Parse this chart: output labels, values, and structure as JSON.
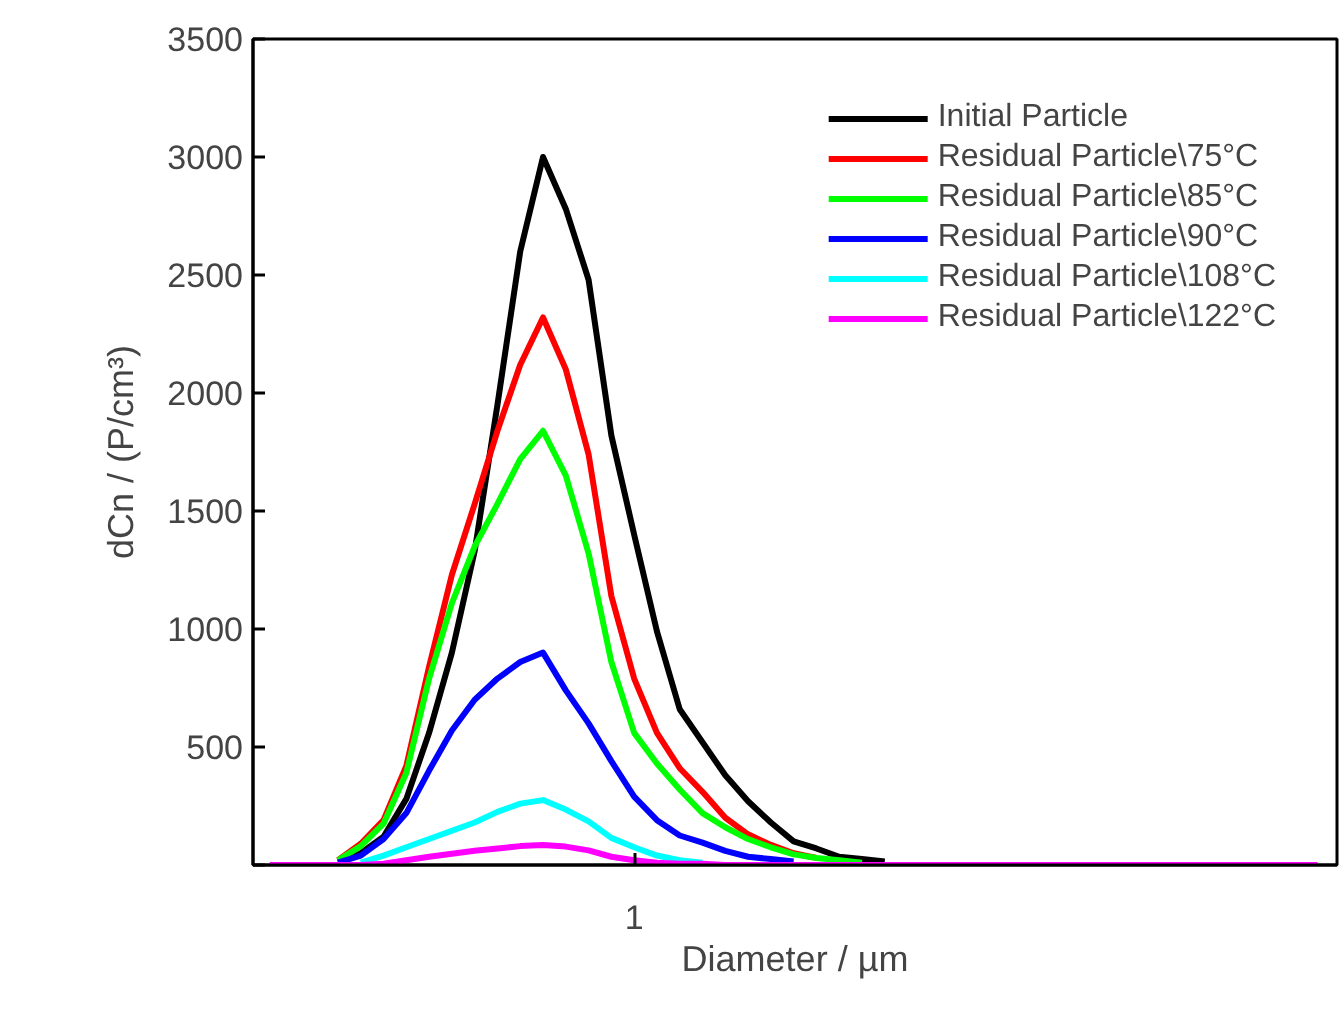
{
  "chart_data": {
    "type": "line",
    "xlabel": "Diameter / µm",
    "ylabel": "dCn / (P/cm³)",
    "categories": [
      null,
      null,
      null,
      null,
      null,
      null,
      null,
      null,
      null,
      null,
      null,
      null,
      null,
      null,
      null,
      null,
      "1",
      null,
      null,
      null,
      null,
      null,
      null,
      null,
      null,
      null,
      null,
      null,
      null,
      null,
      null,
      null,
      null,
      null,
      null,
      null,
      null,
      null,
      null,
      null,
      null,
      null,
      null,
      null,
      null,
      null,
      null
    ],
    "ylim": [
      0,
      3500
    ],
    "yticks": [
      {
        "value": 0,
        "label": null
      },
      500,
      1000,
      1500,
      2000,
      2500,
      3000,
      3500
    ],
    "grid": false,
    "legend": "top right",
    "marker": "none",
    "line_style": "solid",
    "series": [
      {
        "name": "Initial Particle",
        "color": "#000000",
        "values": [
          null,
          null,
          null,
          15,
          50,
          120,
          280,
          560,
          900,
          1330,
          1950,
          2600,
          3000,
          2780,
          2480,
          1820,
          1400,
          990,
          660,
          520,
          380,
          270,
          180,
          100,
          70,
          35,
          25,
          15,
          null,
          null,
          null,
          null,
          null,
          null,
          null,
          null,
          null,
          null,
          null,
          null,
          null,
          null,
          null,
          null,
          null,
          null,
          null
        ]
      },
      {
        "name": "Residual Particle\\75°C",
        "color": "#ff0000",
        "values": [
          null,
          null,
          null,
          20,
          90,
          190,
          420,
          840,
          1230,
          1530,
          1840,
          2120,
          2320,
          2100,
          1740,
          1140,
          790,
          560,
          410,
          310,
          200,
          130,
          85,
          50,
          30,
          null,
          null,
          null,
          null,
          null,
          null,
          null,
          null,
          null,
          null,
          null,
          null,
          null,
          null,
          null,
          null,
          null,
          null,
          null,
          null,
          null,
          null
        ]
      },
      {
        "name": "Residual Particle\\85°C",
        "color": "#00ff00",
        "values": [
          null,
          null,
          null,
          20,
          80,
          175,
          390,
          790,
          1110,
          1350,
          1530,
          1720,
          1840,
          1650,
          1320,
          860,
          560,
          430,
          320,
          220,
          160,
          110,
          75,
          45,
          30,
          20,
          10,
          null,
          null,
          null,
          null,
          null,
          null,
          null,
          null,
          null,
          null,
          null,
          null,
          null,
          null,
          null,
          null,
          null,
          null,
          null,
          null
        ]
      },
      {
        "name": "Residual Particle\\90°C",
        "color": "#0000ff",
        "values": [
          null,
          null,
          null,
          10,
          40,
          110,
          220,
          400,
          570,
          700,
          790,
          860,
          900,
          740,
          600,
          440,
          290,
          190,
          125,
          95,
          60,
          35,
          25,
          15,
          null,
          null,
          null,
          null,
          null,
          null,
          null,
          null,
          null,
          null,
          null,
          null,
          null,
          null,
          null,
          null,
          null,
          null,
          null,
          null,
          null,
          null,
          null
        ]
      },
      {
        "name": "Residual Particle\\108°C",
        "color": "#00ffff",
        "values": [
          null,
          null,
          null,
          null,
          10,
          40,
          75,
          110,
          145,
          180,
          225,
          260,
          275,
          235,
          185,
          115,
          75,
          40,
          20,
          10,
          null,
          null,
          null,
          null,
          null,
          null,
          null,
          null,
          null,
          null,
          null,
          null,
          null,
          null,
          null,
          null,
          null,
          null,
          null,
          null,
          null,
          null,
          null,
          null,
          null,
          null,
          null
        ]
      },
      {
        "name": "Residual Particle\\122°C",
        "color": "#ff00ff",
        "values": [
          0,
          0,
          0,
          0,
          0,
          5,
          20,
          35,
          48,
          60,
          70,
          80,
          85,
          78,
          62,
          35,
          20,
          10,
          5,
          5,
          0,
          0,
          0,
          0,
          0,
          0,
          0,
          0,
          0,
          0,
          0,
          0,
          0,
          0,
          0,
          0,
          0,
          0,
          0,
          0,
          0,
          0,
          0,
          0,
          0,
          0,
          0
        ]
      }
    ]
  }
}
